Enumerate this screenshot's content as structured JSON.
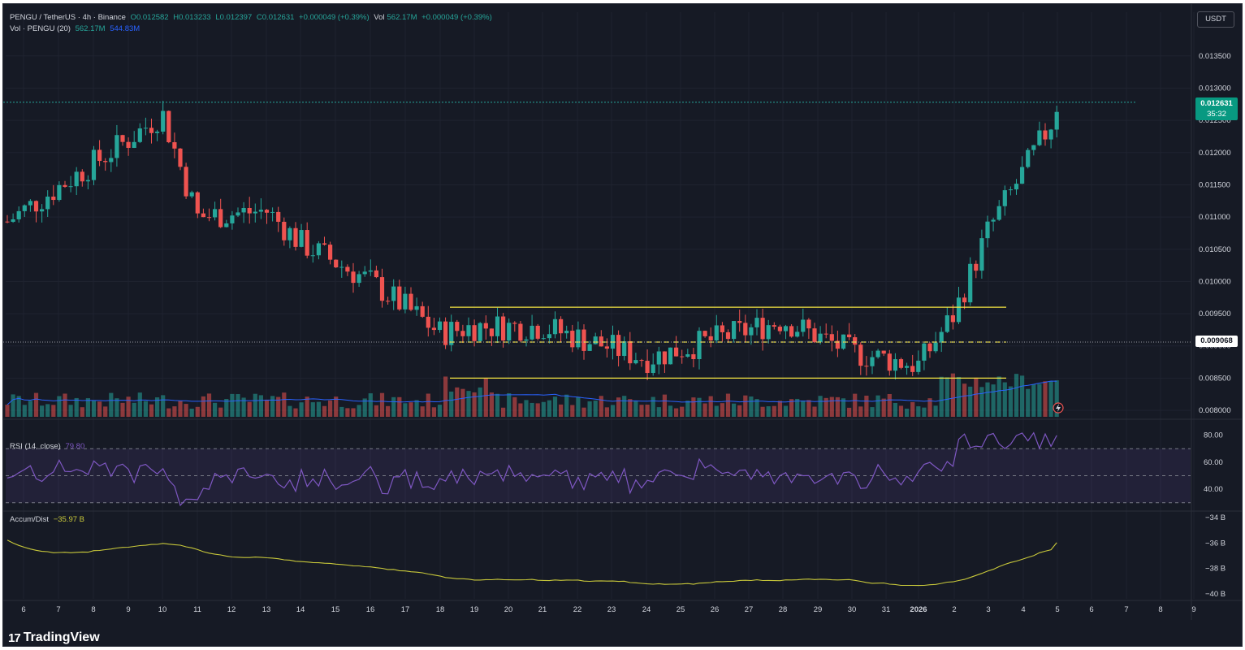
{
  "header": {
    "pair": "PENGU / TetherUS · 4h · Binance",
    "open": "O0.012582",
    "high": "H0.013233",
    "low": "L0.012397",
    "close": "C0.012631",
    "change": "+0.000049 (+0.39%)",
    "vol_label": "Vol",
    "vol_value": "562.17M",
    "vol_change": "+0.000049 (+0.39%)"
  },
  "volume_legend": {
    "label": "Vol · PENGU (20)",
    "value": "562.17M",
    "ma_value": "544.83M"
  },
  "rsi_legend": {
    "label": "RSI (14, close)",
    "value": "79.80"
  },
  "ad_legend": {
    "label": "Accum/Dist",
    "value": "−35.97 B"
  },
  "currency_button": "USDT",
  "price_badge": {
    "price": "0.012631",
    "countdown": "35:32"
  },
  "level_badge": "0.009068",
  "brand": {
    "logo": "17",
    "name": "TradingView"
  },
  "colors": {
    "background": "#161a25",
    "up": "#26a69a",
    "down": "#ef5350",
    "support_resistance": "#f5e642",
    "rsi": "#7e57c2",
    "ad": "#c8c83a"
  },
  "chart_data": [
    {
      "type": "candlestick",
      "symbol": "PENGU / TetherUS",
      "timeframe": "4h",
      "x_ticks": [
        "6",
        "7",
        "8",
        "9",
        "10",
        "11",
        "12",
        "13",
        "14",
        "15",
        "16",
        "17",
        "18",
        "19",
        "20",
        "21",
        "22",
        "23",
        "24",
        "25",
        "26",
        "27",
        "28",
        "29",
        "30",
        "31",
        "2026",
        "2",
        "3",
        "4",
        "5",
        "6",
        "7",
        "8",
        "9"
      ],
      "y_ticks": [
        "0.013500",
        "0.013000",
        "0.012500",
        "0.012000",
        "0.011500",
        "0.011000",
        "0.010500",
        "0.010000",
        "0.009500",
        "0.009000",
        "0.008500",
        "0.008000"
      ],
      "ylim": [
        0.0079,
        0.0138
      ],
      "horizontal_levels": [
        0.0096,
        0.00906,
        0.0085
      ],
      "last_price": 0.012631,
      "key_closes": [
        {
          "date": "6",
          "close": 0.0111
        },
        {
          "date": "9",
          "close": 0.0122
        },
        {
          "date": "10",
          "close": 0.0126
        },
        {
          "date": "11",
          "close": 0.011
        },
        {
          "date": "13",
          "close": 0.0111
        },
        {
          "date": "14",
          "close": 0.0106
        },
        {
          "date": "16",
          "close": 0.01
        },
        {
          "date": "18",
          "close": 0.0092
        },
        {
          "date": "19",
          "close": 0.0093
        },
        {
          "date": "21",
          "close": 0.0093
        },
        {
          "date": "24",
          "close": 0.0088
        },
        {
          "date": "28",
          "close": 0.0094
        },
        {
          "date": "30",
          "close": 0.0089
        },
        {
          "date": "2026",
          "close": 0.0087
        },
        {
          "date": "2",
          "close": 0.0095
        },
        {
          "date": "3",
          "close": 0.0108
        },
        {
          "date": "4",
          "close": 0.0117
        },
        {
          "date": "5",
          "close": 0.012631
        }
      ]
    },
    {
      "type": "line",
      "name": "RSI (14, close)",
      "y_ticks": [
        "80.00",
        "60.00",
        "40.00"
      ],
      "ylim": [
        25,
        90
      ],
      "last_value": 79.8
    },
    {
      "type": "line",
      "name": "Accum/Dist",
      "y_ticks": [
        "−34 B",
        "−36 B",
        "−38 B",
        "−40 B"
      ],
      "ylim": [
        -40.4,
        -33.6
      ],
      "last_value": -35.97
    }
  ]
}
